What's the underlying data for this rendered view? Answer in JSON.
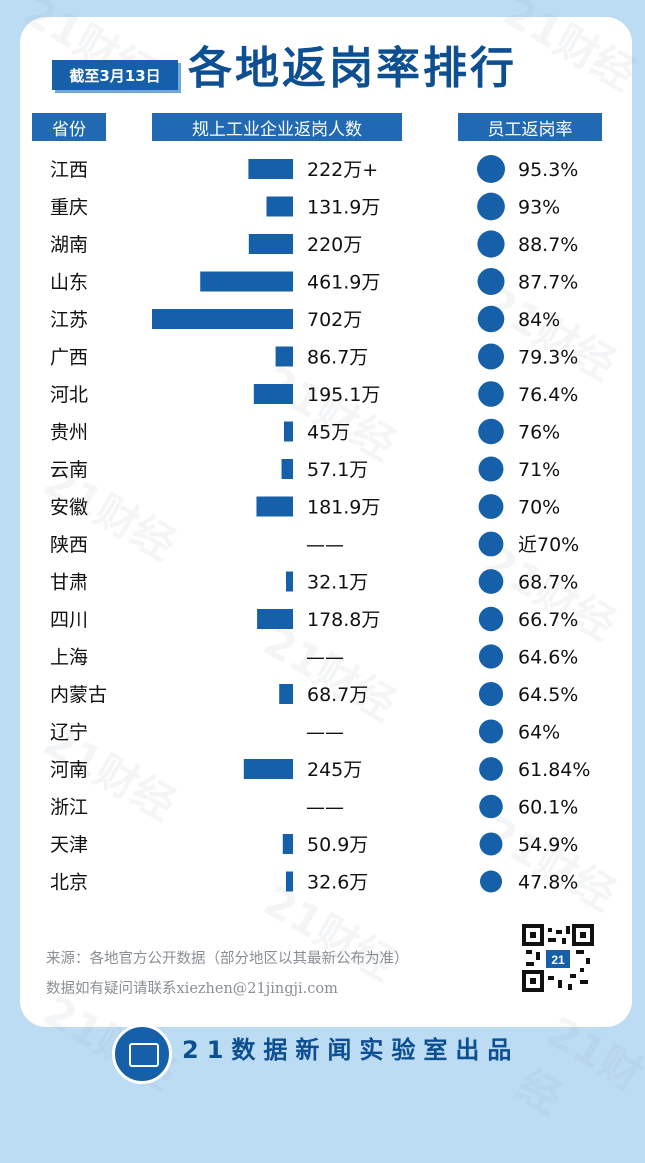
{
  "header": {
    "date": "截至3月13日",
    "title": "各地返岗率排行"
  },
  "columns": {
    "province": "省份",
    "workers": "规上工业企业返岗人数",
    "rate": "员工返岗率"
  },
  "chart_data": {
    "type": "table",
    "title": "各地返岗率排行",
    "columns": [
      "省份",
      "规上工业企业返岗人数",
      "员工返岗率"
    ],
    "rows": [
      {
        "province": "江西",
        "workers_label": "222万+",
        "workers": 222,
        "rate_label": "95.3%",
        "rate": 95.3
      },
      {
        "province": "重庆",
        "workers_label": "131.9万",
        "workers": 131.9,
        "rate_label": "93%",
        "rate": 93
      },
      {
        "province": "湖南",
        "workers_label": "220万",
        "workers": 220,
        "rate_label": "88.7%",
        "rate": 88.7
      },
      {
        "province": "山东",
        "workers_label": "461.9万",
        "workers": 461.9,
        "rate_label": "87.7%",
        "rate": 87.7
      },
      {
        "province": "江苏",
        "workers_label": "702万",
        "workers": 702,
        "rate_label": "84%",
        "rate": 84
      },
      {
        "province": "广西",
        "workers_label": "86.7万",
        "workers": 86.7,
        "rate_label": "79.3%",
        "rate": 79.3
      },
      {
        "province": "河北",
        "workers_label": "195.1万",
        "workers": 195.1,
        "rate_label": "76.4%",
        "rate": 76.4
      },
      {
        "province": "贵州",
        "workers_label": "45万",
        "workers": 45,
        "rate_label": "76%",
        "rate": 76
      },
      {
        "province": "云南",
        "workers_label": "57.1万",
        "workers": 57.1,
        "rate_label": "71%",
        "rate": 71
      },
      {
        "province": "安徽",
        "workers_label": "181.9万",
        "workers": 181.9,
        "rate_label": "70%",
        "rate": 70
      },
      {
        "province": "陕西",
        "workers_label": "——",
        "workers": null,
        "rate_label": "近70%",
        "rate": 70
      },
      {
        "province": "甘肃",
        "workers_label": "32.1万",
        "workers": 32.1,
        "rate_label": "68.7%",
        "rate": 68.7
      },
      {
        "province": "四川",
        "workers_label": "178.8万",
        "workers": 178.8,
        "rate_label": "66.7%",
        "rate": 66.7
      },
      {
        "province": "上海",
        "workers_label": "——",
        "workers": null,
        "rate_label": "64.6%",
        "rate": 64.6
      },
      {
        "province": "内蒙古",
        "workers_label": "68.7万",
        "workers": 68.7,
        "rate_label": "64.5%",
        "rate": 64.5
      },
      {
        "province": "辽宁",
        "workers_label": "——",
        "workers": null,
        "rate_label": "64%",
        "rate": 64
      },
      {
        "province": "河南",
        "workers_label": "245万",
        "workers": 245,
        "rate_label": "61.84%",
        "rate": 61.84
      },
      {
        "province": "浙江",
        "workers_label": "——",
        "workers": null,
        "rate_label": "60.1%",
        "rate": 60.1
      },
      {
        "province": "天津",
        "workers_label": "50.9万",
        "workers": 50.9,
        "rate_label": "54.9%",
        "rate": 54.9
      },
      {
        "province": "北京",
        "workers_label": "32.6万",
        "workers": 32.6,
        "rate_label": "47.8%",
        "rate": 47.8
      }
    ]
  },
  "footer": {
    "source_line1": "来源：各地官方公开数据（部分地区以其最新公布为准）",
    "source_line2": "数据如有疑问请联系xiezhen@21jingji.com",
    "brand": "21数据新闻实验室出品",
    "logo_label": "21",
    "watermark": "21财经"
  },
  "colors": {
    "background": "#bcdcf4",
    "accent": "#1560a8",
    "header": "#2169b3",
    "title": "#0e4f92"
  }
}
